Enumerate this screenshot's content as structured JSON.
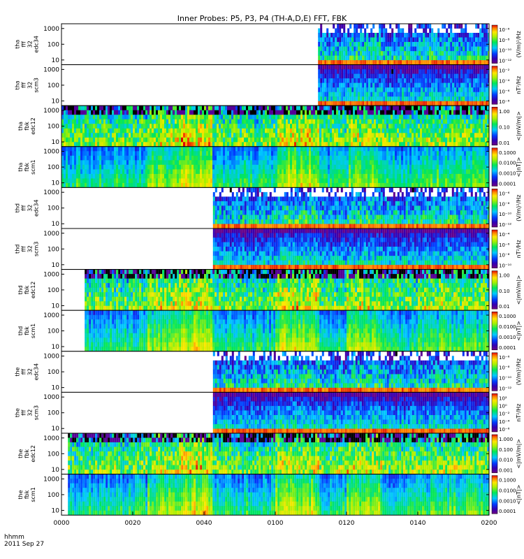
{
  "title": "Inner Probes: P5, P3, P4 (TH-A,D,E) FFT, FBK",
  "footer": {
    "time_label": "hhmm",
    "date_label": "2011 Sep 27"
  },
  "chart_data": {
    "type": "heatmap",
    "title": "Inner Probes: P5, P3, P4 (TH-A,D,E) FFT, FBK",
    "x_axis": {
      "ticks": [
        "0000",
        "0020",
        "0040",
        "0100",
        "0120",
        "0140",
        "0200"
      ],
      "range_minutes": [
        0,
        120
      ]
    },
    "y_axis": {
      "scale": "log",
      "ticks": [
        "10",
        "100",
        "1000"
      ]
    },
    "colormap": "rainbow (purple-blue-cyan-green-yellow-red)",
    "panels": [
      {
        "ylabel": [
          "tha",
          "fff",
          "32",
          "edc34"
        ],
        "start_min": 72,
        "kind": "fffe",
        "bar_ticks": [
          "10⁻⁶",
          "10⁻⁸",
          "10⁻¹⁰",
          "10⁻¹²"
        ],
        "bar_unit": "(V/m)²/Hz"
      },
      {
        "ylabel": [
          "tha",
          "fff",
          "32",
          "scm3"
        ],
        "start_min": 72,
        "kind": "fffs",
        "bar_ticks": [
          "10⁻²",
          "10⁻⁴",
          "10⁻⁶",
          "10⁻⁸"
        ],
        "bar_unit": "nT²/Hz"
      },
      {
        "ylabel": [
          "tha",
          "fbk",
          "edc12"
        ],
        "start_min": 0,
        "kind": "fbke",
        "bar_ticks": [
          "1.00",
          "0.10",
          "0.01"
        ],
        "bar_unit": "<|mV/m|>"
      },
      {
        "ylabel": [
          "tha",
          "fbk",
          "scm1"
        ],
        "start_min": 0,
        "kind": "fbks",
        "bar_ticks": [
          "0.1000",
          "0.0100",
          "0.0010",
          "0.0001"
        ],
        "bar_unit": "<|nT|>"
      },
      {
        "ylabel": [
          "thd",
          "fff",
          "32",
          "edc34"
        ],
        "start_min": 42.5,
        "kind": "fffe",
        "bar_ticks": [
          "10⁻⁶",
          "10⁻⁸",
          "10⁻¹⁰",
          "10⁻¹²"
        ],
        "bar_unit": "(V/m)²/Hz"
      },
      {
        "ylabel": [
          "thd",
          "fff",
          "32",
          "scm3"
        ],
        "start_min": 42.5,
        "kind": "fffs",
        "bar_ticks": [
          "10⁻⁴",
          "10⁻⁶",
          "10⁻⁸",
          "10⁻¹⁰"
        ],
        "bar_unit": "nT²/Hz"
      },
      {
        "ylabel": [
          "thd",
          "fbk",
          "edc12"
        ],
        "start_min": 6.5,
        "kind": "fbke",
        "bar_ticks": [
          "1.00",
          "0.10",
          "0.01"
        ],
        "bar_unit": "<|mV/m|>"
      },
      {
        "ylabel": [
          "thd",
          "fbk",
          "scm1"
        ],
        "start_min": 6.5,
        "kind": "fbks",
        "bar_ticks": [
          "0.1000",
          "0.0100",
          "0.0010",
          "0.0001"
        ],
        "bar_unit": "<|nT|>"
      },
      {
        "ylabel": [
          "the",
          "fff",
          "32",
          "edc34"
        ],
        "start_min": 42.5,
        "kind": "fffe",
        "bar_ticks": [
          "10⁻⁶",
          "10⁻⁸",
          "10⁻¹⁰",
          "10⁻¹²"
        ],
        "bar_unit": "(V/m)²/Hz"
      },
      {
        "ylabel": [
          "the",
          "fff",
          "32",
          "scm3"
        ],
        "start_min": 42.5,
        "kind": "fffs",
        "bar_ticks": [
          "10²",
          "10⁰",
          "10⁻²",
          "10⁻⁴",
          "10⁻⁶"
        ],
        "bar_unit": "nT²/Hz"
      },
      {
        "ylabel": [
          "the",
          "fbk",
          "edc12"
        ],
        "start_min": 1.8,
        "kind": "fbke",
        "bar_ticks": [
          "1.000",
          "0.100",
          "0.010",
          "0.001"
        ],
        "bar_unit": "<|mV/m|>"
      },
      {
        "ylabel": [
          "the",
          "fbk",
          "scm1"
        ],
        "start_min": 1.8,
        "kind": "fbks",
        "bar_ticks": [
          "0.1000",
          "0.0100",
          "0.0010",
          "0.0001"
        ],
        "bar_unit": "<|nT|>"
      }
    ]
  }
}
